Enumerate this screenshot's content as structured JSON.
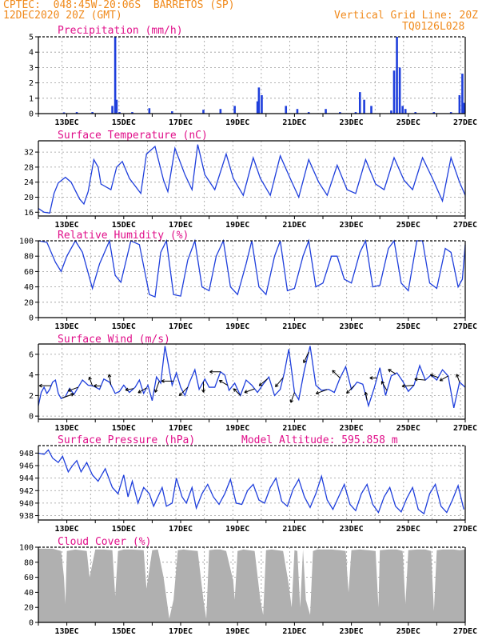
{
  "header": {
    "line1": "CPTEC:  048:45W-20:06S  BARRETOS (SP)",
    "line2": "12DEC2020 20Z (GMT)",
    "grid_note": "Vertical Grid Line: 20Z",
    "code": "TQ0126L028"
  },
  "colors": {
    "header": "#f08a1c",
    "title": "#e0108a",
    "series": "#1f3fdc",
    "cloud": "#b0b0b0",
    "arrow": "#000000"
  },
  "chart_data": [
    {
      "type": "bar",
      "title": "Precipitation (mm/h)",
      "x_ticks": [
        "13DEC",
        "15DEC",
        "17DEC",
        "19DEC",
        "21DEC",
        "23DEC",
        "25DEC",
        "27DEC"
      ],
      "y_ticks": [
        "0",
        "1",
        "2",
        "3",
        "4",
        "5"
      ],
      "ylim": [
        0,
        5
      ],
      "x": [
        12.9,
        13.35,
        13.9,
        14.6,
        14.7,
        14.75,
        14.85,
        15.3,
        15.9,
        16.7,
        17.8,
        18.4,
        18.9,
        19.7,
        19.75,
        19.85,
        20.7,
        21.1,
        21.5,
        22.1,
        22.6,
        23.15,
        23.3,
        23.45,
        23.7,
        24.4,
        24.5,
        24.6,
        24.7,
        24.8,
        24.9,
        25.25,
        25.9,
        26.5,
        26.8,
        26.9,
        26.95
      ],
      "values": [
        0.08,
        0.1,
        0.1,
        0.5,
        5.0,
        0.9,
        0.1,
        0.1,
        0.35,
        0.15,
        0.25,
        0.3,
        0.5,
        0.8,
        1.7,
        1.2,
        0.5,
        0.3,
        0.1,
        0.3,
        0.1,
        0.1,
        1.4,
        0.9,
        0.5,
        0.2,
        2.8,
        5.0,
        3.0,
        0.5,
        0.3,
        0.1,
        0.1,
        0.1,
        1.2,
        2.6,
        0.7
      ]
    },
    {
      "type": "line",
      "title": "Surface Temperature (nC)",
      "x_ticks": [
        "13DEC",
        "15DEC",
        "17DEC",
        "19DEC",
        "21DEC",
        "23DEC",
        "25DEC",
        "27DEC"
      ],
      "y_ticks": [
        "16",
        "20",
        "24",
        "28",
        "32"
      ],
      "ylim": [
        15,
        35
      ],
      "x": [
        12.0,
        12.2,
        12.4,
        12.55,
        12.7,
        12.95,
        13.15,
        13.45,
        13.6,
        13.75,
        13.95,
        14.1,
        14.2,
        14.55,
        14.75,
        14.95,
        15.2,
        15.6,
        15.8,
        16.1,
        16.4,
        16.55,
        16.8,
        17.15,
        17.4,
        17.6,
        17.85,
        18.2,
        18.6,
        18.85,
        19.2,
        19.55,
        19.8,
        20.15,
        20.5,
        20.85,
        21.15,
        21.5,
        21.85,
        22.15,
        22.5,
        22.85,
        23.15,
        23.5,
        23.85,
        24.15,
        24.5,
        24.85,
        25.15,
        25.5,
        25.85,
        26.2,
        26.5,
        26.8,
        27.0
      ],
      "values": [
        17.0,
        16.0,
        15.8,
        21.0,
        23.8,
        25.3,
        24.0,
        19.5,
        18.2,
        21.5,
        30.0,
        28.0,
        23.5,
        22.0,
        28.0,
        29.5,
        25.0,
        21.0,
        31.5,
        33.5,
        24.5,
        21.5,
        33.0,
        26.0,
        22.0,
        34.0,
        26.0,
        22.0,
        31.5,
        25.0,
        20.5,
        30.5,
        25.0,
        20.5,
        31.0,
        25.0,
        20.0,
        30.0,
        24.0,
        20.5,
        28.5,
        22.0,
        21.0,
        30.0,
        23.5,
        22.0,
        30.5,
        24.5,
        22.0,
        30.5,
        25.0,
        19.0,
        30.5,
        24.0,
        20.5
      ]
    },
    {
      "type": "line",
      "title": "Relative Humidity (%)",
      "x_ticks": [
        "13DEC",
        "15DEC",
        "17DEC",
        "19DEC",
        "21DEC",
        "23DEC",
        "25DEC",
        "27DEC"
      ],
      "y_ticks": [
        "0",
        "20",
        "40",
        "60",
        "80",
        "100"
      ],
      "ylim": [
        0,
        100
      ],
      "x": [
        12.0,
        12.3,
        12.6,
        12.8,
        13.0,
        13.3,
        13.55,
        13.9,
        14.15,
        14.5,
        14.7,
        14.9,
        15.25,
        15.55,
        15.9,
        16.1,
        16.3,
        16.5,
        16.75,
        17.0,
        17.25,
        17.5,
        17.75,
        18.0,
        18.25,
        18.5,
        18.75,
        19.0,
        19.3,
        19.5,
        19.75,
        20.0,
        20.3,
        20.5,
        20.75,
        21.0,
        21.3,
        21.5,
        21.75,
        22.0,
        22.3,
        22.5,
        22.75,
        23.0,
        23.3,
        23.5,
        23.75,
        24.0,
        24.3,
        24.5,
        24.75,
        25.0,
        25.3,
        25.5,
        25.75,
        26.0,
        26.3,
        26.5,
        26.75,
        26.9,
        27.0
      ],
      "values": [
        100.0,
        98.0,
        72.0,
        60.0,
        80.0,
        100.0,
        85.0,
        38.0,
        70.0,
        100.0,
        55.0,
        46.0,
        100.0,
        95.0,
        30.0,
        27.0,
        85.0,
        100.0,
        30.0,
        28.0,
        75.0,
        100.0,
        40.0,
        35.0,
        80.0,
        100.0,
        40.0,
        30.0,
        70.0,
        100.0,
        40.0,
        30.0,
        80.0,
        100.0,
        35.0,
        38.0,
        80.0,
        100.0,
        40.0,
        45.0,
        80.0,
        80.0,
        50.0,
        45.0,
        85.0,
        100.0,
        40.0,
        42.0,
        90.0,
        100.0,
        45.0,
        35.0,
        100.0,
        100.0,
        45.0,
        38.0,
        90.0,
        85.0,
        40.0,
        50.0,
        95.0
      ]
    },
    {
      "type": "line",
      "title": "Surface Wind (m/s)",
      "x_ticks": [
        "13DEC",
        "15DEC",
        "17DEC",
        "19DEC",
        "21DEC",
        "23DEC",
        "25DEC",
        "27DEC"
      ],
      "y_ticks": [
        "0",
        "2",
        "4",
        "6"
      ],
      "ylim": [
        -0.3,
        7.0
      ],
      "x": [
        12.0,
        12.1,
        12.2,
        12.3,
        12.4,
        12.5,
        12.6,
        12.7,
        12.8,
        12.95,
        13.1,
        13.25,
        13.4,
        13.55,
        13.75,
        13.95,
        14.15,
        14.3,
        14.5,
        14.7,
        14.85,
        15.0,
        15.2,
        15.4,
        15.55,
        15.7,
        15.85,
        16.0,
        16.15,
        16.3,
        16.45,
        16.6,
        16.7,
        16.85,
        17.0,
        17.15,
        17.3,
        17.5,
        17.65,
        17.85,
        18.0,
        18.2,
        18.4,
        18.55,
        18.7,
        18.9,
        19.1,
        19.3,
        19.5,
        19.7,
        19.9,
        20.1,
        20.3,
        20.5,
        20.65,
        20.8,
        21.0,
        21.15,
        21.35,
        21.55,
        21.75,
        21.95,
        22.2,
        22.4,
        22.6,
        22.8,
        23.0,
        23.2,
        23.4,
        23.6,
        23.8,
        24.0,
        24.2,
        24.4,
        24.6,
        24.8,
        25.0,
        25.2,
        25.4,
        25.6,
        25.8,
        26.0,
        26.2,
        26.4,
        26.6,
        26.8,
        27.0
      ],
      "values": [
        1.0,
        2.3,
        2.8,
        2.2,
        2.6,
        3.3,
        3.5,
        2.2,
        1.7,
        1.9,
        2.7,
        2.1,
        2.8,
        3.5,
        3.0,
        2.9,
        2.6,
        3.6,
        3.3,
        2.2,
        2.4,
        3.0,
        2.3,
        2.8,
        3.5,
        2.2,
        3.0,
        1.5,
        3.8,
        3.2,
        6.8,
        4.5,
        3.0,
        4.2,
        2.8,
        2.0,
        3.2,
        4.5,
        2.6,
        3.6,
        2.8,
        2.8,
        4.3,
        4.0,
        2.5,
        3.2,
        2.0,
        3.5,
        3.0,
        2.3,
        3.1,
        3.8,
        2.0,
        2.6,
        4.3,
        6.5,
        2.3,
        1.6,
        4.5,
        6.8,
        3.0,
        2.5,
        2.6,
        2.3,
        3.7,
        4.8,
        2.6,
        3.3,
        3.1,
        1.0,
        2.7,
        4.7,
        2.0,
        3.9,
        4.2,
        3.4,
        2.4,
        3.0,
        4.9,
        3.5,
        4.0,
        3.5,
        4.5,
        3.9,
        0.8,
        3.3,
        2.8
      ],
      "arrows": [
        {
          "x": 12.45,
          "dir": 180,
          "len": 1.0
        },
        {
          "x": 12.85,
          "dir": 20,
          "len": 1.0
        },
        {
          "x": 13.4,
          "dir": 200,
          "len": 0.9
        },
        {
          "x": 13.9,
          "dir": 110,
          "len": 0.8
        },
        {
          "x": 14.2,
          "dir": 180,
          "len": 0.6
        },
        {
          "x": 14.55,
          "dir": 100,
          "len": 0.9
        },
        {
          "x": 15.35,
          "dir": 190,
          "len": 0.7
        },
        {
          "x": 15.8,
          "dir": 210,
          "len": 0.8
        },
        {
          "x": 16.25,
          "dir": 250,
          "len": 1.0
        },
        {
          "x": 16.75,
          "dir": 180,
          "len": 1.0
        },
        {
          "x": 17.25,
          "dir": 225,
          "len": 1.0
        },
        {
          "x": 17.8,
          "dir": 270,
          "len": 0.9
        },
        {
          "x": 18.4,
          "dir": 180,
          "len": 0.9
        },
        {
          "x": 18.65,
          "dir": 150,
          "len": 0.8
        },
        {
          "x": 19.1,
          "dir": 135,
          "len": 0.8
        },
        {
          "x": 19.6,
          "dir": 200,
          "len": 0.9
        },
        {
          "x": 20.05,
          "dir": 220,
          "len": 0.9
        },
        {
          "x": 20.6,
          "dir": 230,
          "len": 1.0
        },
        {
          "x": 21.0,
          "dir": 250,
          "len": 0.9
        },
        {
          "x": 21.5,
          "dir": 245,
          "len": 1.0
        },
        {
          "x": 22.15,
          "dir": 200,
          "len": 1.0
        },
        {
          "x": 22.6,
          "dir": 135,
          "len": 0.9
        },
        {
          "x": 23.1,
          "dir": 225,
          "len": 0.9
        },
        {
          "x": 23.55,
          "dir": 100,
          "len": 0.7
        },
        {
          "x": 23.9,
          "dir": 180,
          "len": 0.6
        },
        {
          "x": 24.25,
          "dir": 120,
          "len": 0.9
        },
        {
          "x": 24.55,
          "dir": 150,
          "len": 0.7
        },
        {
          "x": 25.2,
          "dir": 185,
          "len": 1.0
        },
        {
          "x": 25.6,
          "dir": 175,
          "len": 0.9
        },
        {
          "x": 26.05,
          "dir": 160,
          "len": 0.7
        },
        {
          "x": 26.4,
          "dir": 210,
          "len": 0.8
        },
        {
          "x": 26.8,
          "dir": 110,
          "len": 0.7
        }
      ]
    },
    {
      "type": "line",
      "title": "Surface Pressure (hPa)",
      "annotation": "Model Altitude: 595.858 m",
      "x_ticks": [
        "13DEC",
        "15DEC",
        "17DEC",
        "19DEC",
        "21DEC",
        "23DEC",
        "25DEC",
        "27DEC"
      ],
      "y_ticks": [
        "938",
        "940",
        "942",
        "944",
        "946",
        "948"
      ],
      "ylim": [
        937.3,
        949.2
      ],
      "x": [
        12.0,
        12.2,
        12.35,
        12.5,
        12.7,
        12.85,
        13.05,
        13.2,
        13.35,
        13.5,
        13.7,
        13.9,
        14.1,
        14.35,
        14.6,
        14.8,
        15.0,
        15.15,
        15.3,
        15.5,
        15.7,
        15.9,
        16.05,
        16.2,
        16.35,
        16.5,
        16.7,
        16.85,
        17.05,
        17.2,
        17.4,
        17.55,
        17.75,
        17.95,
        18.15,
        18.35,
        18.55,
        18.75,
        18.95,
        19.15,
        19.35,
        19.55,
        19.75,
        19.95,
        20.15,
        20.35,
        20.55,
        20.75,
        20.95,
        21.15,
        21.35,
        21.55,
        21.75,
        21.95,
        22.15,
        22.35,
        22.55,
        22.75,
        22.95,
        23.15,
        23.35,
        23.55,
        23.75,
        23.95,
        24.15,
        24.35,
        24.55,
        24.75,
        24.95,
        25.15,
        25.35,
        25.55,
        25.75,
        25.95,
        26.15,
        26.35,
        26.55,
        26.75,
        26.95
      ],
      "values": [
        948.0,
        947.8,
        948.5,
        947.2,
        946.5,
        947.5,
        945.0,
        946.0,
        946.8,
        945.0,
        946.5,
        944.5,
        943.5,
        945.5,
        942.5,
        941.5,
        944.5,
        941.0,
        943.5,
        940.0,
        942.5,
        941.5,
        939.5,
        941.0,
        942.5,
        939.5,
        940.0,
        944.0,
        941.0,
        940.0,
        942.5,
        939.2,
        941.5,
        943.0,
        941.0,
        939.8,
        941.5,
        943.8,
        940.0,
        939.8,
        942.0,
        943.0,
        940.5,
        940.0,
        942.5,
        944.0,
        940.3,
        939.5,
        942.2,
        943.8,
        941.0,
        939.3,
        941.5,
        944.3,
        940.5,
        939.0,
        941.0,
        943.0,
        939.8,
        938.8,
        941.5,
        943.0,
        939.8,
        938.5,
        941.0,
        942.5,
        939.5,
        938.6,
        940.8,
        942.5,
        939.0,
        938.3,
        941.5,
        943.0,
        939.5,
        938.5,
        940.5,
        942.8,
        939.0
      ]
    },
    {
      "type": "area",
      "title": "Cloud Cover (%)",
      "x_ticks": [
        "13DEC",
        "15DEC",
        "17DEC",
        "19DEC",
        "21DEC",
        "23DEC",
        "25DEC",
        "27DEC"
      ],
      "y_ticks": [
        "0",
        "20",
        "40",
        "60",
        "80",
        "100"
      ],
      "ylim": [
        0,
        100
      ],
      "x": [
        12.0,
        12.5,
        12.8,
        12.9,
        12.95,
        13.0,
        13.3,
        13.7,
        13.8,
        14.0,
        14.3,
        14.6,
        14.7,
        14.8,
        15.0,
        15.3,
        15.7,
        15.8,
        16.0,
        16.2,
        16.4,
        16.6,
        16.75,
        16.9,
        17.1,
        17.3,
        17.6,
        17.8,
        17.9,
        18.0,
        18.2,
        18.4,
        18.6,
        18.85,
        18.9,
        19.0,
        19.2,
        19.4,
        19.6,
        19.8,
        19.9,
        20.0,
        20.2,
        20.4,
        20.6,
        20.8,
        20.9,
        21.0,
        21.1,
        21.2,
        21.3,
        21.4,
        21.55,
        21.65,
        21.8,
        22.0,
        22.3,
        22.6,
        22.8,
        22.9,
        23.0,
        23.3,
        23.6,
        23.85,
        23.95,
        24.0,
        24.3,
        24.6,
        24.8,
        24.9,
        25.0,
        25.3,
        25.6,
        25.8,
        25.9,
        26.0,
        26.2,
        26.4,
        26.6,
        26.8,
        27.0
      ],
      "values": [
        98,
        98,
        95,
        60,
        25,
        95,
        97,
        95,
        60,
        97,
        97,
        96,
        35,
        95,
        97,
        97,
        96,
        45,
        96,
        97,
        60,
        5,
        30,
        96,
        97,
        96,
        95,
        30,
        5,
        96,
        97,
        97,
        95,
        55,
        30,
        95,
        97,
        96,
        95,
        30,
        10,
        96,
        97,
        96,
        95,
        50,
        20,
        96,
        95,
        20,
        97,
        30,
        10,
        95,
        97,
        97,
        97,
        96,
        95,
        40,
        96,
        97,
        96,
        95,
        20,
        96,
        97,
        97,
        95,
        25,
        96,
        97,
        97,
        95,
        15,
        96,
        97,
        97,
        97,
        96,
        97
      ]
    }
  ]
}
